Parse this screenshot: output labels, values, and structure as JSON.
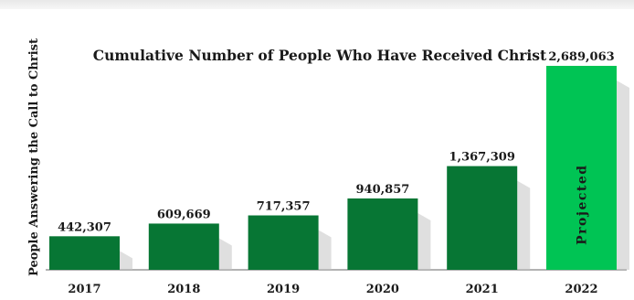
{
  "chart_data": {
    "type": "bar",
    "title": "Cumulative Number of People Who Have Received Christ",
    "ylabel": "People Answering the Call to Christ",
    "xlabel": "",
    "categories": [
      "2017",
      "2018",
      "2019",
      "2020",
      "2021",
      "2022"
    ],
    "values": [
      442307,
      609669,
      717357,
      940857,
      1367309,
      2689063
    ],
    "value_labels": [
      "442,307",
      "609,669",
      "717,357",
      "940,857",
      "1,367,309",
      "2,689,063"
    ],
    "ylim": [
      0,
      2689063
    ],
    "grid": false,
    "legend": "none",
    "annotations": [
      {
        "category": "2022",
        "text": "Projected"
      }
    ],
    "colors": {
      "bar": "#077634",
      "projected_bar": "#00c454",
      "shadow": "#c4c4c4",
      "text": "#1a1a1a",
      "axis_line": "#666666",
      "frame_shadow": "#e6e6e6"
    }
  }
}
